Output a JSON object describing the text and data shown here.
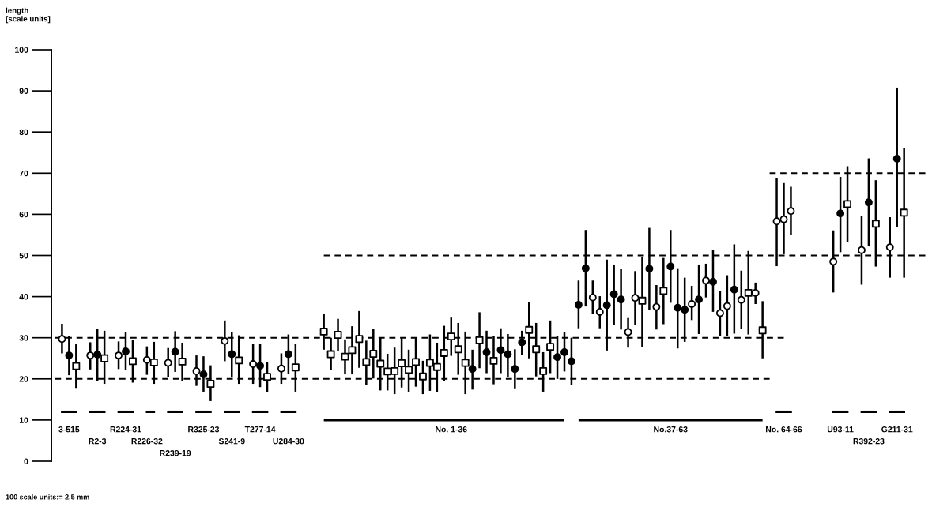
{
  "chart_data": {
    "type": "scatter",
    "ylabel": "length\n[scale units]",
    "annotations": [
      "100 scale units:= 2.5 mm"
    ],
    "ylim": [
      0,
      100
    ],
    "yticks": [
      0,
      10,
      20,
      30,
      40,
      50,
      60,
      70,
      80,
      90,
      100
    ],
    "categories": [
      null,
      null,
      "3-515",
      null,
      null,
      null,
      "R2-3",
      null,
      null,
      null,
      "R224-31",
      null,
      null,
      "R226-32",
      null,
      null,
      null,
      "R239-19",
      null,
      null,
      null,
      "R325-23",
      null,
      null,
      null,
      "S241-9",
      null,
      null,
      null,
      "T277-14",
      null,
      null,
      null,
      "U284-30",
      null,
      null,
      null,
      null,
      null,
      null,
      null,
      null,
      null,
      null,
      null,
      null,
      null,
      null,
      null,
      null,
      null,
      null,
      null,
      null,
      null,
      null,
      "No. 1-36",
      null,
      null,
      null,
      null,
      null,
      null,
      null,
      null,
      null,
      null,
      null,
      null,
      null,
      null,
      null,
      null,
      null,
      null,
      null,
      null,
      null,
      null,
      null,
      null,
      null,
      null,
      null,
      null,
      null,
      null,
      "No.37-63",
      null,
      null,
      null,
      null,
      null,
      null,
      null,
      null,
      null,
      null,
      null,
      null,
      null,
      null,
      null,
      "No. 64-66",
      null,
      null,
      null,
      null,
      null,
      null,
      null,
      "U93-11",
      null,
      null,
      null,
      "R392-23",
      null,
      null,
      null,
      "G211-31",
      null,
      null,
      null,
      null
    ],
    "series": [
      {
        "type": "line",
        "color": "#000000",
        "line_style": "dashed",
        "values": [
          30,
          30,
          30,
          30,
          30,
          30,
          30,
          30,
          30,
          30,
          30,
          30,
          30,
          30,
          30,
          30,
          30,
          30,
          30,
          30,
          30,
          30,
          30,
          30,
          30,
          30,
          30,
          30,
          30,
          30,
          30,
          30,
          30,
          30,
          30,
          30,
          30,
          30,
          30,
          30,
          30,
          30,
          30,
          30,
          30,
          30,
          30,
          30,
          30,
          30,
          30,
          30,
          30,
          30,
          30,
          30,
          30,
          30,
          30,
          30,
          30,
          30,
          30,
          30,
          30,
          30,
          30,
          30,
          30,
          30,
          30,
          30,
          30,
          30,
          30,
          30,
          30,
          30,
          30,
          30,
          30,
          30,
          30,
          30,
          30,
          30,
          30,
          30,
          30,
          30,
          30,
          30,
          30,
          30,
          30,
          30,
          30,
          30,
          30,
          30,
          30,
          30,
          30,
          30,
          null,
          null,
          null,
          null,
          null,
          null,
          null,
          null,
          null,
          null,
          null,
          null,
          null,
          null,
          null,
          null,
          null,
          null,
          null,
          null
        ]
      },
      {
        "type": "line",
        "color": "#000000",
        "line_style": "dashed",
        "values": [
          20,
          20,
          20,
          20,
          20,
          20,
          20,
          20,
          20,
          20,
          20,
          20,
          20,
          20,
          20,
          20,
          20,
          20,
          20,
          20,
          20,
          20,
          20,
          20,
          20,
          20,
          20,
          20,
          20,
          20,
          20,
          20,
          20,
          20,
          20,
          20,
          20,
          20,
          20,
          20,
          20,
          20,
          20,
          20,
          20,
          20,
          20,
          20,
          20,
          20,
          20,
          20,
          20,
          20,
          20,
          20,
          20,
          20,
          20,
          20,
          20,
          20,
          20,
          20,
          20,
          20,
          20,
          20,
          20,
          20,
          20,
          20,
          20,
          20,
          20,
          20,
          20,
          20,
          20,
          20,
          20,
          20,
          20,
          20,
          20,
          20,
          20,
          20,
          20,
          20,
          20,
          20,
          20,
          20,
          20,
          20,
          20,
          20,
          20,
          20,
          20,
          20,
          null,
          null,
          null,
          null,
          null,
          null,
          null,
          null,
          null,
          null,
          null,
          null,
          null,
          null,
          null,
          null,
          null,
          null,
          null,
          null,
          null,
          null
        ]
      },
      {
        "type": "line",
        "color": "#000000",
        "line_style": "dashed",
        "values": [
          null,
          null,
          null,
          null,
          null,
          null,
          null,
          null,
          null,
          null,
          null,
          null,
          null,
          null,
          null,
          null,
          null,
          null,
          null,
          null,
          null,
          null,
          null,
          null,
          null,
          null,
          null,
          null,
          null,
          null,
          null,
          null,
          null,
          null,
          null,
          null,
          null,
          null,
          50,
          50,
          50,
          50,
          50,
          50,
          50,
          50,
          50,
          50,
          50,
          50,
          50,
          50,
          50,
          50,
          50,
          50,
          50,
          50,
          50,
          50,
          50,
          50,
          50,
          50,
          50,
          50,
          50,
          50,
          50,
          50,
          50,
          50,
          50,
          50,
          50,
          50,
          50,
          50,
          50,
          50,
          50,
          50,
          50,
          50,
          50,
          50,
          50,
          50,
          50,
          50,
          50,
          50,
          50,
          50,
          50,
          50,
          50,
          50,
          50,
          50,
          50,
          50,
          50,
          50,
          50,
          50,
          50,
          50,
          50,
          50,
          50,
          50,
          50,
          50,
          50,
          50,
          50,
          50,
          50,
          50,
          50,
          50,
          50,
          50
        ]
      },
      {
        "type": "line",
        "color": "#000000",
        "line_style": "dashed",
        "values": [
          null,
          null,
          null,
          null,
          null,
          null,
          null,
          null,
          null,
          null,
          null,
          null,
          null,
          null,
          null,
          null,
          null,
          null,
          null,
          null,
          null,
          null,
          null,
          null,
          null,
          null,
          null,
          null,
          null,
          null,
          null,
          null,
          null,
          null,
          null,
          null,
          null,
          null,
          null,
          null,
          null,
          null,
          null,
          null,
          null,
          null,
          null,
          null,
          null,
          null,
          null,
          null,
          null,
          null,
          null,
          null,
          null,
          null,
          null,
          null,
          null,
          null,
          null,
          null,
          null,
          null,
          null,
          null,
          null,
          null,
          null,
          null,
          null,
          null,
          null,
          null,
          null,
          null,
          null,
          null,
          null,
          null,
          null,
          null,
          null,
          null,
          null,
          null,
          null,
          null,
          null,
          null,
          null,
          null,
          null,
          null,
          null,
          null,
          null,
          null,
          null,
          70,
          70,
          70,
          70,
          70,
          70,
          70,
          70,
          70,
          70,
          70,
          70,
          70,
          70,
          70,
          70,
          70,
          70,
          70,
          70,
          70,
          70,
          70
        ]
      },
      {
        "type": "line",
        "color": "#000000",
        "line_style": "solid",
        "values": [
          null,
          null,
          null,
          null,
          null,
          null,
          null,
          null,
          null,
          null,
          null,
          null,
          null,
          null,
          null,
          null,
          null,
          null,
          null,
          null,
          null,
          null,
          null,
          null,
          null,
          null,
          null,
          null,
          null,
          null,
          null,
          null,
          null,
          null,
          null,
          null,
          null,
          null,
          10,
          10,
          10,
          10,
          10,
          10,
          10,
          10,
          10,
          10,
          10,
          10,
          10,
          10,
          10,
          10,
          10,
          10,
          10,
          10,
          10,
          10,
          10,
          10,
          10,
          10,
          10,
          10,
          10,
          10,
          10,
          10,
          10,
          10,
          10,
          null,
          10,
          10,
          10,
          10,
          10,
          10,
          10,
          10,
          10,
          10,
          10,
          10,
          10,
          10,
          10,
          10,
          10,
          10,
          10,
          10,
          10,
          10,
          10,
          10,
          10,
          10,
          10,
          null,
          null,
          null,
          null,
          null,
          null,
          null,
          null,
          null,
          null,
          null,
          null,
          null,
          null,
          null,
          null,
          null,
          null,
          null,
          null,
          null,
          null,
          null
        ]
      },
      {
        "marker": "circle",
        "color": "#ffffff",
        "values": [
          null,
          29.7,
          null,
          null,
          null,
          25.7,
          null,
          null,
          null,
          25.7,
          null,
          null,
          null,
          24.6,
          null,
          null,
          23.9,
          null,
          null,
          null,
          21.9,
          null,
          null,
          null,
          29.2,
          null,
          null,
          null,
          23.6,
          null,
          null,
          null,
          22.5,
          null,
          null,
          null,
          null,
          null,
          null,
          null,
          null,
          null,
          null,
          null,
          null,
          null,
          null,
          null,
          null,
          null,
          null,
          null,
          null,
          null,
          null,
          null,
          null,
          null,
          null,
          null,
          null,
          null,
          null,
          null,
          null,
          null,
          null,
          null,
          null,
          null,
          null,
          null,
          null,
          null,
          null,
          null,
          39.8,
          36.3,
          null,
          null,
          null,
          31.4,
          39.7,
          null,
          null,
          37.5,
          null,
          null,
          null,
          null,
          38.2,
          null,
          43.9,
          null,
          36.0,
          37.7,
          null,
          39.2,
          null,
          40.9,
          null,
          null,
          58.3,
          58.8,
          60.8,
          null,
          null,
          null,
          null,
          null,
          48.5,
          null,
          null,
          null,
          51.3,
          null,
          null,
          null,
          52.0,
          null,
          null,
          null,
          null,
          null
        ],
        "errors": [
          null,
          [
            26.2,
            33.4
          ],
          null,
          null,
          null,
          [
            22.3,
            28.9
          ],
          null,
          null,
          null,
          [
            22.4,
            29.1
          ],
          null,
          null,
          null,
          [
            21.0,
            27.9
          ],
          null,
          null,
          [
            20.5,
            27.5
          ],
          null,
          null,
          null,
          [
            18.3,
            25.7
          ],
          null,
          null,
          null,
          [
            24.3,
            34.2
          ],
          null,
          null,
          null,
          [
            18.8,
            28.6
          ],
          null,
          null,
          null,
          [
            18.8,
            26.2
          ],
          null,
          null,
          null,
          null,
          null,
          null,
          null,
          null,
          null,
          null,
          null,
          null,
          null,
          null,
          null,
          null,
          null,
          null,
          null,
          null,
          null,
          null,
          null,
          null,
          null,
          null,
          null,
          null,
          null,
          null,
          null,
          null,
          null,
          null,
          null,
          null,
          null,
          null,
          null,
          null,
          null,
          null,
          null,
          [
            35.7,
            43.9
          ],
          [
            32.3,
            40.1
          ],
          null,
          null,
          null,
          [
            27.6,
            34.8
          ],
          [
            33.1,
            46.2
          ],
          null,
          null,
          [
            32.0,
            42.8
          ],
          null,
          null,
          null,
          null,
          [
            34.3,
            42.6
          ],
          null,
          [
            39.8,
            48.0
          ],
          null,
          [
            30.4,
            41.4
          ],
          [
            30.4,
            45.2
          ],
          null,
          [
            32.2,
            46.3
          ],
          null,
          [
            38.2,
            43.4
          ],
          null,
          null,
          [
            47.4,
            68.9
          ],
          [
            50.3,
            67.6
          ],
          [
            55.0,
            66.7
          ],
          null,
          null,
          null,
          null,
          null,
          [
            41.0,
            56.1
          ],
          null,
          null,
          null,
          [
            42.9,
            59.5
          ],
          null,
          null,
          null,
          [
            44.6,
            59.3
          ],
          null,
          null,
          null,
          null,
          null
        ]
      },
      {
        "marker": "circle",
        "color": "#000000",
        "values": [
          null,
          null,
          25.7,
          null,
          null,
          null,
          25.9,
          null,
          null,
          null,
          26.7,
          null,
          null,
          null,
          null,
          null,
          null,
          26.6,
          null,
          null,
          null,
          21.1,
          null,
          null,
          null,
          26.0,
          null,
          null,
          null,
          23.2,
          null,
          null,
          null,
          26.0,
          null,
          null,
          null,
          null,
          null,
          null,
          null,
          null,
          null,
          null,
          null,
          null,
          null,
          null,
          null,
          null,
          null,
          null,
          null,
          null,
          null,
          null,
          null,
          null,
          null,
          22.4,
          null,
          26.5,
          null,
          27.0,
          26.0,
          22.4,
          28.9,
          null,
          null,
          null,
          null,
          25.3,
          26.5,
          24.3,
          38.0,
          46.9,
          null,
          null,
          37.9,
          40.6,
          39.3,
          null,
          null,
          null,
          46.8,
          null,
          null,
          47.3,
          37.3,
          36.8,
          null,
          39.3,
          null,
          43.6,
          null,
          null,
          41.7,
          null,
          null,
          null,
          null,
          null,
          null,
          null,
          null,
          null,
          null,
          null,
          null,
          null,
          null,
          60.2,
          null,
          null,
          null,
          62.9,
          null,
          null,
          null,
          73.5,
          null,
          null,
          null,
          null
        ],
        "errors": [
          null,
          null,
          [
            20.9,
            30.5
          ],
          null,
          null,
          null,
          [
            19.5,
            32.2
          ],
          null,
          null,
          null,
          [
            22.1,
            31.4
          ],
          null,
          null,
          null,
          null,
          null,
          null,
          [
            21.7,
            31.6
          ],
          null,
          null,
          null,
          [
            16.9,
            25.5
          ],
          null,
          null,
          null,
          [
            20.3,
            31.4
          ],
          null,
          null,
          null,
          [
            18.0,
            28.6
          ],
          null,
          null,
          null,
          [
            21.2,
            30.8
          ],
          null,
          null,
          null,
          null,
          null,
          null,
          null,
          null,
          null,
          null,
          null,
          null,
          null,
          null,
          null,
          null,
          null,
          null,
          null,
          null,
          null,
          null,
          null,
          null,
          null,
          [
            17.4,
            27.1
          ],
          null,
          [
            21.4,
            31.7
          ],
          null,
          [
            21.4,
            32.3
          ],
          [
            20.5,
            30.9
          ],
          [
            17.7,
            27.2
          ],
          [
            25.9,
            31.7
          ],
          null,
          null,
          null,
          null,
          [
            20.0,
            30.4
          ],
          [
            21.8,
            31.4
          ],
          [
            18.5,
            30.0
          ],
          [
            32.3,
            43.9
          ],
          [
            37.6,
            56.2
          ],
          null,
          null,
          [
            26.9,
            49.0
          ],
          [
            33.1,
            47.8
          ],
          [
            32.0,
            46.7
          ],
          null,
          null,
          null,
          [
            36.8,
            56.7
          ],
          null,
          null,
          [
            38.5,
            56.2
          ],
          [
            27.4,
            46.9
          ],
          [
            29.0,
            44.6
          ],
          null,
          [
            30.9,
            47.8
          ],
          null,
          [
            36.3,
            51.3
          ],
          null,
          null,
          [
            31.0,
            52.7
          ],
          null,
          null,
          null,
          null,
          null,
          null,
          null,
          null,
          null,
          null,
          null,
          null,
          null,
          null,
          [
            50.8,
            69.1
          ],
          null,
          null,
          null,
          [
            52.2,
            73.6
          ],
          null,
          null,
          null,
          [
            56.9,
            90.8
          ],
          null,
          null,
          null,
          null
        ]
      },
      {
        "marker": "square",
        "color": "#ffffff",
        "values": [
          null,
          null,
          null,
          23.1,
          null,
          null,
          null,
          25.0,
          null,
          null,
          null,
          24.3,
          null,
          null,
          24.0,
          null,
          null,
          null,
          24.2,
          null,
          null,
          null,
          18.8,
          null,
          null,
          null,
          24.5,
          null,
          null,
          null,
          20.5,
          null,
          null,
          null,
          22.8,
          null,
          null,
          null,
          31.5,
          26.0,
          30.7,
          25.4,
          27.0,
          29.7,
          24.1,
          26.1,
          23.7,
          21.8,
          21.9,
          23.8,
          22.2,
          24.1,
          20.6,
          23.9,
          22.9,
          26.3,
          30.3,
          27.2,
          23.9,
          null,
          29.4,
          null,
          24.4,
          null,
          null,
          null,
          null,
          31.9,
          27.2,
          21.9,
          27.8,
          null,
          null,
          null,
          null,
          null,
          null,
          null,
          null,
          null,
          null,
          null,
          null,
          39.0,
          null,
          null,
          41.4,
          null,
          null,
          null,
          null,
          null,
          null,
          null,
          null,
          null,
          null,
          null,
          40.9,
          null,
          31.8,
          null,
          null,
          null,
          null,
          null,
          null,
          null,
          null,
          null,
          null,
          null,
          62.5,
          null,
          null,
          null,
          57.7,
          null,
          null,
          null,
          60.4,
          null,
          null,
          null
        ],
        "errors": [
          null,
          null,
          null,
          [
            17.8,
            28.4
          ],
          null,
          null,
          null,
          [
            18.8,
            31.7
          ],
          null,
          null,
          null,
          [
            19.1,
            29.5
          ],
          null,
          null,
          [
            18.8,
            29.0
          ],
          null,
          null,
          null,
          [
            19.5,
            28.8
          ],
          null,
          null,
          null,
          [
            14.6,
            23.3
          ],
          null,
          null,
          null,
          [
            18.8,
            30.6
          ],
          null,
          null,
          null,
          [
            16.8,
            24.1
          ],
          null,
          null,
          null,
          [
            16.9,
            28.6
          ],
          null,
          null,
          null,
          [
            27.1,
            35.9
          ],
          [
            22.1,
            30.0
          ],
          [
            26.7,
            34.6
          ],
          [
            21.1,
            29.6
          ],
          [
            21.1,
            32.8
          ],
          [
            22.7,
            36.5
          ],
          [
            18.6,
            29.3
          ],
          [
            20.1,
            32.2
          ],
          [
            17.2,
            30.0
          ],
          [
            17.2,
            26.1
          ],
          [
            16.3,
            27.6
          ],
          [
            17.9,
            30.0
          ],
          [
            16.9,
            27.1
          ],
          [
            18.1,
            30.1
          ],
          [
            16.3,
            24.4
          ],
          [
            17.1,
            30.8
          ],
          [
            16.7,
            28.8
          ],
          [
            19.4,
            32.9
          ],
          [
            25.6,
            34.9
          ],
          [
            21.0,
            33.6
          ],
          [
            16.3,
            31.5
          ],
          null,
          [
            22.6,
            36.2
          ],
          null,
          [
            18.7,
            30.4
          ],
          null,
          null,
          null,
          null,
          [
            25.0,
            38.7
          ],
          [
            20.6,
            33.6
          ],
          [
            16.9,
            26.5
          ],
          [
            21.4,
            34.2
          ],
          null,
          null,
          null,
          null,
          null,
          null,
          null,
          null,
          null,
          null,
          null,
          null,
          [
            27.8,
            49.7
          ],
          null,
          null,
          [
            33.3,
            49.4
          ],
          null,
          null,
          null,
          null,
          null,
          null,
          null,
          null,
          null,
          null,
          null,
          [
            30.8,
            51.1
          ],
          null,
          [
            25.0,
            38.9
          ],
          null,
          null,
          null,
          null,
          null,
          null,
          null,
          null,
          null,
          null,
          null,
          [
            53.2,
            71.7
          ],
          null,
          null,
          null,
          [
            47.3,
            68.3
          ],
          null,
          null,
          null,
          [
            44.6,
            76.2
          ],
          null,
          null,
          null
        ]
      }
    ]
  }
}
